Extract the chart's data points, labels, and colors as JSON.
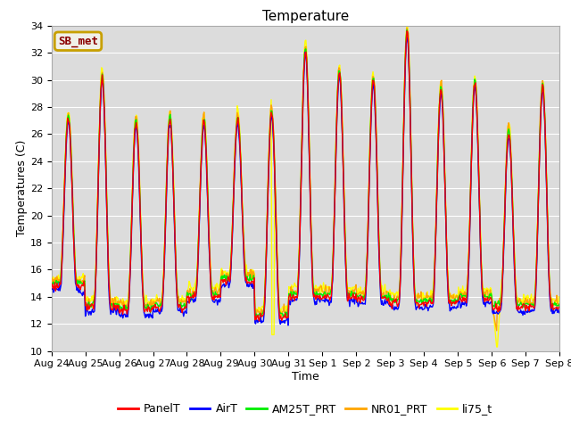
{
  "title": "Temperature",
  "xlabel": "Time",
  "ylabel": "Temperatures (C)",
  "ylim": [
    10,
    34
  ],
  "yticks": [
    10,
    12,
    14,
    16,
    18,
    20,
    22,
    24,
    26,
    28,
    30,
    32,
    34
  ],
  "x_tick_labels": [
    "Aug 24",
    "Aug 25",
    "Aug 26",
    "Aug 27",
    "Aug 28",
    "Aug 29",
    "Aug 30",
    "Aug 31",
    "Sep 1",
    "Sep 2",
    "Sep 3",
    "Sep 4",
    "Sep 5",
    "Sep 6",
    "Sep 7",
    "Sep 8"
  ],
  "series_colors": {
    "PanelT": "#ff0000",
    "AirT": "#0000ff",
    "AM25T_PRT": "#00ee00",
    "NR01_PRT": "#ffa500",
    "li75_t": "#ffff00"
  },
  "station_label": "SB_met",
  "station_label_color": "#8b0000",
  "station_box_facecolor": "#f0f0e8",
  "station_box_edgecolor": "#c8a000",
  "background_color": "#dcdcdc",
  "grid_color": "#ffffff",
  "title_fontsize": 11,
  "axis_fontsize": 9,
  "tick_fontsize": 8,
  "legend_fontsize": 9,
  "n_days": 15,
  "daily_peaks": [
    27.2,
    30.2,
    26.9,
    27.1,
    26.9,
    27.1,
    27.6,
    32.2,
    30.6,
    30.0,
    33.5,
    29.3,
    29.8,
    26.1,
    29.5
  ],
  "daily_mins": [
    14.8,
    13.2,
    13.0,
    13.2,
    14.0,
    15.2,
    12.5,
    14.0,
    14.0,
    13.8,
    13.5,
    13.5,
    13.8,
    13.2,
    13.2
  ]
}
